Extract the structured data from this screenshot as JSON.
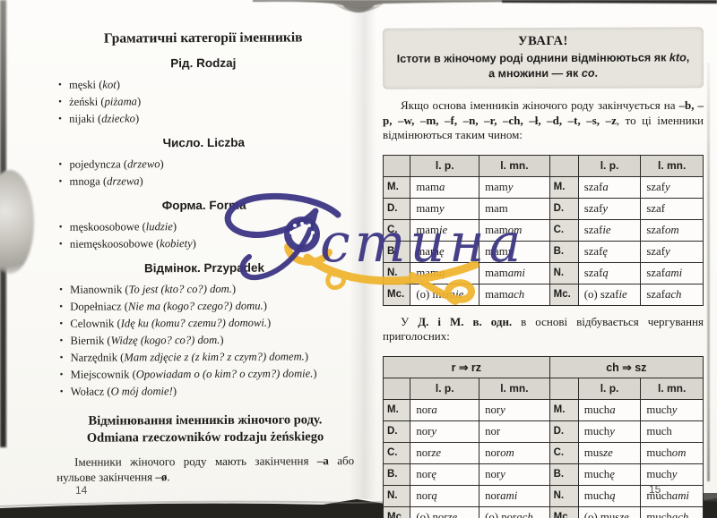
{
  "left_page": {
    "title": "Граматичні категорії іменників",
    "sections": [
      {
        "heading": "Рід. Rodzaj",
        "items": [
          {
            "pre": "męski",
            "it": "kot"
          },
          {
            "pre": "żeński",
            "it": "piżama"
          },
          {
            "pre": "nijaki",
            "it": "dziecko"
          }
        ]
      },
      {
        "heading": "Число. Liczba",
        "items": [
          {
            "pre": "pojedyncza",
            "it": "drzewo"
          },
          {
            "pre": "mnoga",
            "it": "drzewa"
          }
        ]
      },
      {
        "heading": "Форма. Forma",
        "items": [
          {
            "pre": "męskoosobowe",
            "it": "ludzie"
          },
          {
            "pre": "niemęskoosobowe",
            "it": "kobiety"
          }
        ]
      },
      {
        "heading": "Відмінок. Przypadek",
        "items": [
          {
            "pre": "Mianownik",
            "it": "To jest (kto? co?) dom."
          },
          {
            "pre": "Dopełniacz",
            "it": "Nie ma (kogo? czego?) domu."
          },
          {
            "pre": "Celownik",
            "it": "Idę ku (komu? czemu?) domowi."
          },
          {
            "pre": "Biernik",
            "it": "Widzę (kogo? co?) dom."
          },
          {
            "pre": "Narzędnik",
            "it": "Mam zdjęcie z (z kim? z czym?) domem."
          },
          {
            "pre": "Miejscownik",
            "it": "Opowiadam o (o kim? o czym?) domie."
          },
          {
            "pre": "Wołacz",
            "it": "O mój domie!"
          }
        ]
      }
    ],
    "subtitle_line1": "Відмінювання іменників жіночого роду.",
    "subtitle_line2": "Odmiana rzeczowników rodzaju żeńskiego",
    "paragraph": [
      [
        "Іменники жіночого роду мають закінчення ",
        "n"
      ],
      [
        "–a",
        "b"
      ],
      [
        " або нульове закінчення ",
        "n"
      ],
      [
        "–ø",
        "b"
      ],
      [
        ".",
        "n"
      ]
    ],
    "page_number": "14"
  },
  "right_page": {
    "notice": {
      "title": "УВАГА!",
      "lines": [
        [
          [
            "Істоти в жіночому роді однини відмінюються як ",
            "n"
          ],
          [
            "kto",
            "i"
          ],
          [
            ",",
            "n"
          ]
        ],
        [
          [
            "а множини — як ",
            "n"
          ],
          [
            "co",
            "i"
          ],
          [
            ".",
            "n"
          ]
        ]
      ]
    },
    "intro_paragraph": [
      [
        "Якщо основа іменників жіночого роду закінчується на ",
        "n"
      ],
      [
        "–b, –p, –w, –m, –f, –n, –r, –ch, –ł, –d, –t, –s, –z",
        "b"
      ],
      [
        ", то ці іменники відмінюються таким чином:",
        "n"
      ]
    ],
    "table1": {
      "col_headers": [
        "l. p.",
        "l. mn.",
        "l. p.",
        "l. mn."
      ],
      "rows": [
        {
          "label": "M.",
          "cells": [
            [
              [
                "mam",
                "n"
              ],
              [
                "a",
                "i"
              ]
            ],
            [
              [
                "mam",
                "n"
              ],
              [
                "y",
                "i"
              ]
            ],
            [
              [
                "szaf",
                "n"
              ],
              [
                "a",
                "i"
              ]
            ],
            [
              [
                "szaf",
                "n"
              ],
              [
                "y",
                "i"
              ]
            ]
          ]
        },
        {
          "label": "D.",
          "cells": [
            [
              [
                "mam",
                "n"
              ],
              [
                "y",
                "i"
              ]
            ],
            [
              [
                "mam",
                "n"
              ]
            ],
            [
              [
                "szaf",
                "n"
              ],
              [
                "y",
                "i"
              ]
            ],
            [
              [
                "szaf",
                "n"
              ]
            ]
          ]
        },
        {
          "label": "C.",
          "cells": [
            [
              [
                "mam",
                "n"
              ],
              [
                "ie",
                "i"
              ]
            ],
            [
              [
                "mam",
                "n"
              ],
              [
                "om",
                "i"
              ]
            ],
            [
              [
                "szaf",
                "n"
              ],
              [
                "ie",
                "i"
              ]
            ],
            [
              [
                "szaf",
                "n"
              ],
              [
                "om",
                "i"
              ]
            ]
          ]
        },
        {
          "label": "B.",
          "cells": [
            [
              [
                "mam",
                "n"
              ],
              [
                "ę",
                "i"
              ]
            ],
            [
              [
                "mam",
                "n"
              ],
              [
                "y",
                "i"
              ]
            ],
            [
              [
                "szaf",
                "n"
              ],
              [
                "ę",
                "i"
              ]
            ],
            [
              [
                "szaf",
                "n"
              ],
              [
                "y",
                "i"
              ]
            ]
          ]
        },
        {
          "label": "N.",
          "cells": [
            [
              [
                "mam",
                "n"
              ],
              [
                "ą",
                "i"
              ]
            ],
            [
              [
                "mam",
                "n"
              ],
              [
                "ami",
                "i"
              ]
            ],
            [
              [
                "szaf",
                "n"
              ],
              [
                "ą",
                "i"
              ]
            ],
            [
              [
                "szaf",
                "n"
              ],
              [
                "ami",
                "i"
              ]
            ]
          ]
        },
        {
          "label": "Mc.",
          "cells": [
            [
              [
                "(o) mam",
                "n"
              ],
              [
                "ie",
                "i"
              ]
            ],
            [
              [
                "mam",
                "n"
              ],
              [
                "ach",
                "i"
              ]
            ],
            [
              [
                "(o) szaf",
                "n"
              ],
              [
                "ie",
                "i"
              ]
            ],
            [
              [
                "szaf",
                "n"
              ],
              [
                "ach",
                "i"
              ]
            ]
          ]
        }
      ]
    },
    "alternation_paragraph": [
      [
        "У ",
        "n"
      ],
      [
        "Д. і М. в. одн.",
        "b"
      ],
      [
        " в основі відбувається чергування приголосних:",
        "n"
      ]
    ],
    "table2": {
      "group_headers": [
        "r ⇒ rz",
        "ch ⇒ sz"
      ],
      "col_headers": [
        "l. p.",
        "l. mn.",
        "l. p.",
        "l. mn."
      ],
      "rows": [
        {
          "label": "M.",
          "cells": [
            [
              [
                "nor",
                "n"
              ],
              [
                "a",
                "i"
              ]
            ],
            [
              [
                "nor",
                "n"
              ],
              [
                "y",
                "i"
              ]
            ],
            [
              [
                "much",
                "n"
              ],
              [
                "a",
                "i"
              ]
            ],
            [
              [
                "much",
                "n"
              ],
              [
                "y",
                "i"
              ]
            ]
          ]
        },
        {
          "label": "D.",
          "cells": [
            [
              [
                "nor",
                "n"
              ],
              [
                "y",
                "i"
              ]
            ],
            [
              [
                "nor",
                "n"
              ]
            ],
            [
              [
                "much",
                "n"
              ],
              [
                "y",
                "i"
              ]
            ],
            [
              [
                "much",
                "n"
              ]
            ]
          ]
        },
        {
          "label": "C.",
          "cells": [
            [
              [
                "nor",
                "n"
              ],
              [
                "ze",
                "i"
              ]
            ],
            [
              [
                "nor",
                "n"
              ],
              [
                "om",
                "i"
              ]
            ],
            [
              [
                "mus",
                "n"
              ],
              [
                "ze",
                "i"
              ]
            ],
            [
              [
                "much",
                "n"
              ],
              [
                "om",
                "i"
              ]
            ]
          ]
        },
        {
          "label": "B.",
          "cells": [
            [
              [
                "nor",
                "n"
              ],
              [
                "ę",
                "i"
              ]
            ],
            [
              [
                "nor",
                "n"
              ],
              [
                "y",
                "i"
              ]
            ],
            [
              [
                "much",
                "n"
              ],
              [
                "ę",
                "i"
              ]
            ],
            [
              [
                "much",
                "n"
              ],
              [
                "y",
                "i"
              ]
            ]
          ]
        },
        {
          "label": "N.",
          "cells": [
            [
              [
                "nor",
                "n"
              ],
              [
                "ą",
                "i"
              ]
            ],
            [
              [
                "nor",
                "n"
              ],
              [
                "ami",
                "i"
              ]
            ],
            [
              [
                "much",
                "n"
              ],
              [
                "ą",
                "i"
              ]
            ],
            [
              [
                "much",
                "n"
              ],
              [
                "ami",
                "i"
              ]
            ]
          ]
        },
        {
          "label": "Mc.",
          "cells": [
            [
              [
                "(o) nor",
                "n"
              ],
              [
                "ze",
                "i"
              ]
            ],
            [
              [
                "(o) nor",
                "n"
              ],
              [
                "ach",
                "i"
              ]
            ],
            [
              [
                "(o) mus",
                "n"
              ],
              [
                "ze",
                "i"
              ]
            ],
            [
              [
                "much",
                "n"
              ],
              [
                "ach",
                "i"
              ]
            ]
          ]
        }
      ]
    },
    "page_number": "15"
  },
  "watermark": {
    "text": "стина",
    "navy": "#3d3684",
    "gold": "#f0b42c"
  }
}
